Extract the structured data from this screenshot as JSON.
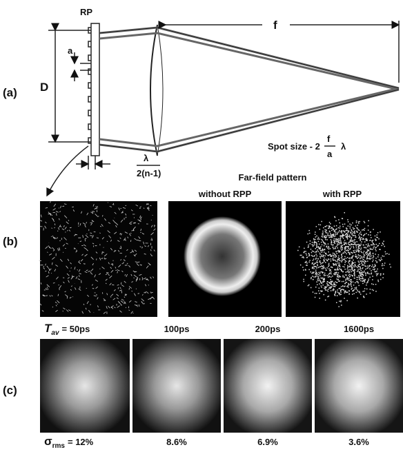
{
  "panel_labels": [
    "(a)",
    "(b)",
    "(c)"
  ],
  "diagram": {
    "rp_label": "RP",
    "a_label": "a",
    "d_label": "D",
    "f_label": "f",
    "step_numerator": "λ",
    "step_denominator": "2(n-1)",
    "spot_size": {
      "text": "Spot size - 2",
      "numerator": "f",
      "denominator": "a",
      "suffix": "λ"
    }
  },
  "far_field": {
    "title": "Far-field pattern",
    "columns": [
      "without RPP",
      "with RPP"
    ]
  },
  "averaging": {
    "time_symbol": "T",
    "time_subscript": "av",
    "time_labels": [
      "= 50ps",
      "100ps",
      "200ps",
      "1600ps"
    ],
    "rms_symbol": "σ",
    "rms_subscript": "rms",
    "rms_labels": [
      "= 12%",
      "8.6%",
      "6.9%",
      "3.6%"
    ]
  }
}
